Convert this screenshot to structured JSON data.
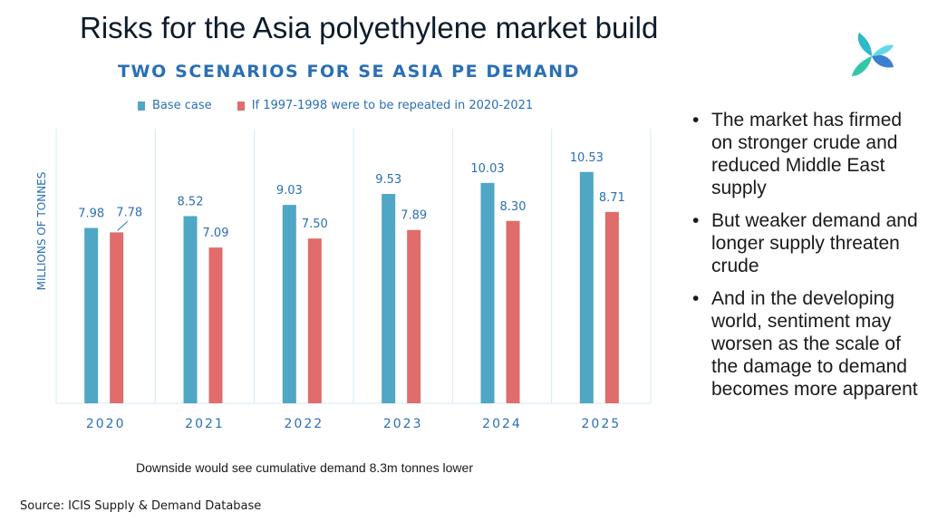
{
  "title": "Risks for the Asia polyethylene market build",
  "logo_icon": "icis-star-logo",
  "chart_data": {
    "type": "bar",
    "title": "TWO SCENARIOS FOR SE ASIA PE DEMAND",
    "ylabel": "MILLIONS OF TONNES",
    "xlabel": "",
    "categories": [
      "2020",
      "2021",
      "2022",
      "2023",
      "2024",
      "2025"
    ],
    "series": [
      {
        "name": "Base case",
        "color": "#4fa6c5",
        "values": [
          7.98,
          8.52,
          9.03,
          9.53,
          10.03,
          10.53
        ],
        "labels": [
          "7.98",
          "8.52",
          "9.03",
          "9.53",
          "10.03",
          "10.53"
        ]
      },
      {
        "name": "If 1997-1998 were to be repeated in 2020-2021",
        "color": "#e06c6c",
        "values": [
          7.78,
          7.09,
          7.5,
          7.89,
          8.3,
          8.71
        ],
        "labels": [
          "7.78",
          "7.09",
          "7.50",
          "7.89",
          "8.30",
          "8.71"
        ]
      }
    ],
    "ylim": [
      0,
      12.5
    ],
    "grid": "vertical separators",
    "legend": "top",
    "label_color": "#2a6fb5"
  },
  "footnote": "Downside would see cumulative demand  8.3m tonnes lower",
  "source": "Source: ICIS Supply & Demand Database",
  "bullets": [
    "The market has firmed on stronger crude and reduced Middle East supply",
    "But weaker demand and longer supply threaten crude",
    "And in the developing world, sentiment may worsen as the scale of the damage to demand becomes more apparent"
  ]
}
